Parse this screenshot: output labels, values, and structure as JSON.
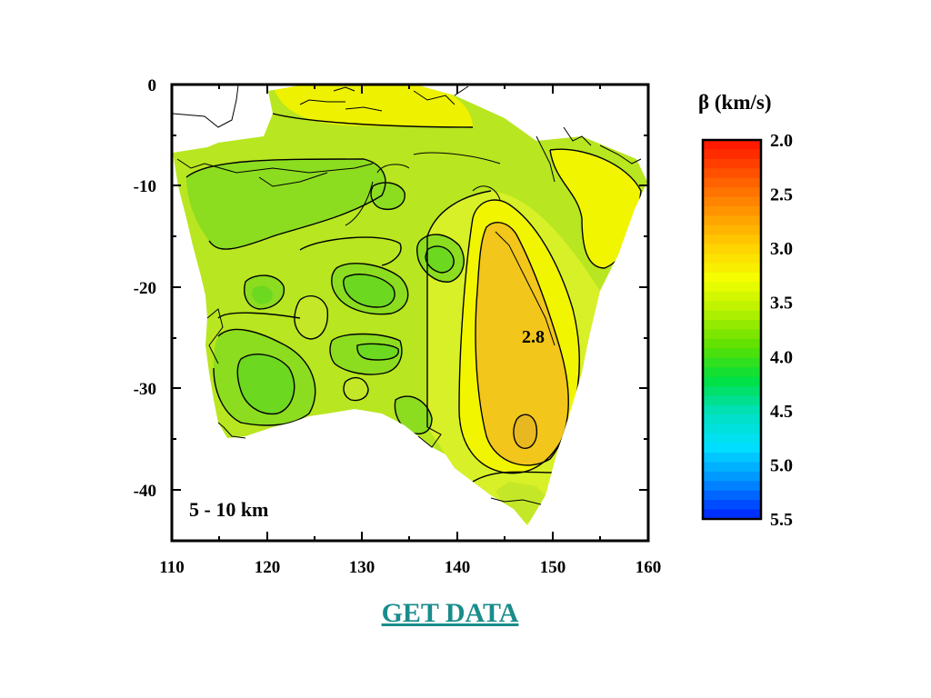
{
  "map": {
    "depth_label": "5 - 10 km",
    "contour_label": "2.8",
    "x_ticks": [
      "110",
      "120",
      "130",
      "140",
      "150",
      "160"
    ],
    "y_ticks": [
      "0",
      "-10",
      "-20",
      "-30",
      "-40"
    ],
    "x_range": [
      110,
      160
    ],
    "y_range": [
      -45,
      0
    ]
  },
  "colorbar": {
    "title": "β (km/s)",
    "labels": [
      "2.0",
      "2.5",
      "3.0",
      "3.5",
      "4.0",
      "4.5",
      "5.0",
      "5.5"
    ],
    "range": [
      2.0,
      5.5
    ],
    "colors": [
      "#ff1a00",
      "#ff5a00",
      "#ff9600",
      "#ffd000",
      "#f4ff00",
      "#b4f000",
      "#5ce000",
      "#00e040",
      "#00e0c0",
      "#00e0ff",
      "#0090ff",
      "#0030ff"
    ]
  },
  "get_data_label": "GET DATA"
}
